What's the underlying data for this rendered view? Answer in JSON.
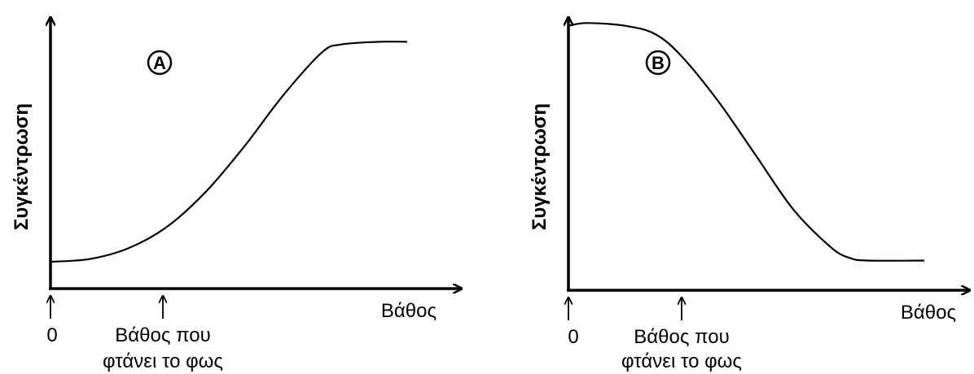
{
  "chart_data": [
    {
      "type": "line",
      "panel_label": "A",
      "ylabel": "Συγκέντρωση",
      "xlabel": "Βάθος",
      "origin_label": "0",
      "annotation_line1": "Βάθος που",
      "annotation_line2": "φτάνει το φως",
      "xlim": [
        0,
        10
      ],
      "ylim": [
        0,
        10
      ],
      "light_depth": 2.7,
      "series": [
        {
          "x": [
            0,
            1,
            2,
            3,
            4,
            5,
            6,
            7,
            7.5,
            8.5,
            9.2
          ],
          "y": [
            1,
            1.1,
            1.5,
            2.3,
            3.6,
            5.3,
            7.2,
            8.8,
            9.1,
            9.2,
            9.2
          ]
        }
      ]
    },
    {
      "type": "line",
      "panel_label": "B",
      "ylabel": "Συγκέντρωση",
      "xlabel": "Βάθος",
      "origin_label": "0",
      "annotation_line1": "Βάθος που",
      "annotation_line2": "φτάνει το φως",
      "xlim": [
        0,
        10
      ],
      "ylim": [
        0,
        10
      ],
      "light_depth": 2.7,
      "series": [
        {
          "x": [
            0,
            0.5,
            1.5,
            2.3,
            3,
            4,
            5,
            6,
            7,
            7.5,
            8,
            9.5
          ],
          "y": [
            9.8,
            9.9,
            9.8,
            9.5,
            8.7,
            7.0,
            5.0,
            3.0,
            1.6,
            1.2,
            1.1,
            1.1
          ]
        }
      ]
    }
  ]
}
